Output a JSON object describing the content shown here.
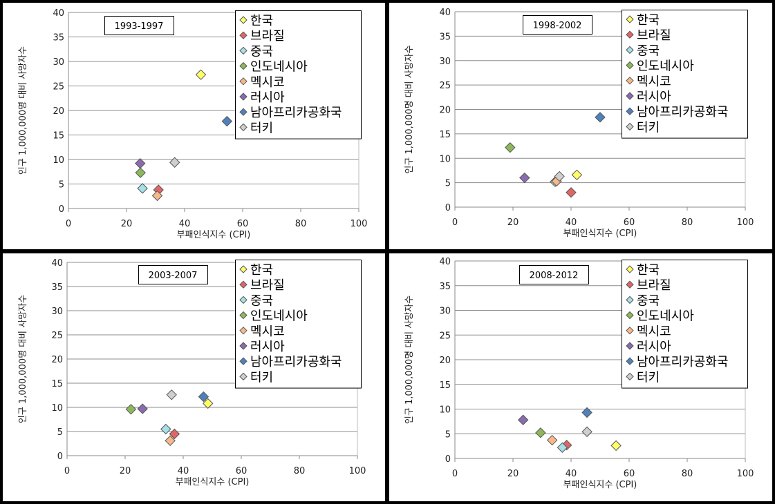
{
  "chart_data": [
    {
      "type": "scatter",
      "title": "1993-1997",
      "xlabel": "부패인식지수 (CPI)",
      "ylabel": "인구 1,000,000명 대비 사망자수",
      "xlim": [
        0,
        100
      ],
      "ylim": [
        0,
        40
      ],
      "xticks": [
        0,
        20,
        40,
        60,
        80,
        100
      ],
      "yticks": [
        0,
        5,
        10,
        15,
        20,
        25,
        30,
        35,
        40
      ],
      "grid": "horizontal",
      "legend": "top-right",
      "series": [
        {
          "name": "한국",
          "color": "#ffff66",
          "x": 45.6,
          "y": 27.3
        },
        {
          "name": "브라질",
          "color": "#e06666",
          "x": 31.0,
          "y": 3.8
        },
        {
          "name": "중국",
          "color": "#a6e0e8",
          "x": 25.5,
          "y": 4.1
        },
        {
          "name": "인도네시아",
          "color": "#8db85a",
          "x": 24.8,
          "y": 7.3
        },
        {
          "name": "멕시코",
          "color": "#f7b98a",
          "x": 30.6,
          "y": 2.6
        },
        {
          "name": "러시아",
          "color": "#8a6bb0",
          "x": 24.7,
          "y": 9.2
        },
        {
          "name": "남아프리카공화국",
          "color": "#4f81bd",
          "x": 54.6,
          "y": 17.8
        },
        {
          "name": "터키",
          "color": "#cfcfcf",
          "x": 36.6,
          "y": 9.4
        }
      ]
    },
    {
      "type": "scatter",
      "title": "1998-2002",
      "xlabel": "부패인식지수 (CPI)",
      "ylabel": "인구 1,000,000명 대비 사망자수",
      "xlim": [
        0,
        100
      ],
      "ylim": [
        0,
        40
      ],
      "xticks": [
        0,
        20,
        40,
        60,
        80,
        100
      ],
      "yticks": [
        0,
        5,
        10,
        15,
        20,
        25,
        30,
        35,
        40
      ],
      "grid": "horizontal",
      "legend": "top-right",
      "series": [
        {
          "name": "한국",
          "color": "#ffff66",
          "x": 42.0,
          "y": 6.6
        },
        {
          "name": "브라질",
          "color": "#e06666",
          "x": 40.0,
          "y": 3.0
        },
        {
          "name": "중국",
          "color": "#a6e0e8",
          "x": 34.5,
          "y": 5.2
        },
        {
          "name": "인도네시아",
          "color": "#8db85a",
          "x": 19.0,
          "y": 12.2
        },
        {
          "name": "멕시코",
          "color": "#f7b98a",
          "x": 35.0,
          "y": 5.3
        },
        {
          "name": "러시아",
          "color": "#8a6bb0",
          "x": 24.0,
          "y": 6.0
        },
        {
          "name": "남아프리카공화국",
          "color": "#4f81bd",
          "x": 50.0,
          "y": 18.4
        },
        {
          "name": "터키",
          "color": "#cfcfcf",
          "x": 36.0,
          "y": 6.3
        }
      ]
    },
    {
      "type": "scatter",
      "title": "2003-2007",
      "xlabel": "부패인식지수 (CPI)",
      "ylabel": "인구 1,000,000명 대비 사망자수",
      "xlim": [
        0,
        100
      ],
      "ylim": [
        0,
        40
      ],
      "xticks": [
        0,
        20,
        40,
        60,
        80,
        100
      ],
      "yticks": [
        0,
        5,
        10,
        15,
        20,
        25,
        30,
        35,
        40
      ],
      "grid": "horizontal",
      "legend": "top-right",
      "series": [
        {
          "name": "한국",
          "color": "#ffff66",
          "x": 48.5,
          "y": 10.8
        },
        {
          "name": "브라질",
          "color": "#e06666",
          "x": 37.0,
          "y": 4.5
        },
        {
          "name": "중국",
          "color": "#a6e0e8",
          "x": 34.0,
          "y": 5.5
        },
        {
          "name": "인도네시아",
          "color": "#8db85a",
          "x": 22.0,
          "y": 9.6
        },
        {
          "name": "멕시코",
          "color": "#f7b98a",
          "x": 35.5,
          "y": 3.1
        },
        {
          "name": "러시아",
          "color": "#8a6bb0",
          "x": 26.0,
          "y": 9.7
        },
        {
          "name": "남아프리카공화국",
          "color": "#4f81bd",
          "x": 47.0,
          "y": 12.2
        },
        {
          "name": "터키",
          "color": "#cfcfcf",
          "x": 36.0,
          "y": 12.6
        }
      ]
    },
    {
      "type": "scatter",
      "title": "2008-2012",
      "xlabel": "부패인식지수 (CPI)",
      "ylabel": "인구 1,000,000명 대비 사망자수",
      "xlim": [
        0,
        100
      ],
      "ylim": [
        0,
        40
      ],
      "xticks": [
        0,
        20,
        40,
        60,
        80,
        100
      ],
      "yticks": [
        0,
        5,
        10,
        15,
        20,
        25,
        30,
        35,
        40
      ],
      "grid": "horizontal",
      "legend": "top-right",
      "series": [
        {
          "name": "한국",
          "color": "#ffff66",
          "x": 55.5,
          "y": 2.6
        },
        {
          "name": "브라질",
          "color": "#e06666",
          "x": 38.5,
          "y": 2.7
        },
        {
          "name": "중국",
          "color": "#a6e0e8",
          "x": 37.0,
          "y": 2.2
        },
        {
          "name": "인도네시아",
          "color": "#8db85a",
          "x": 29.5,
          "y": 5.2
        },
        {
          "name": "멕시코",
          "color": "#f7b98a",
          "x": 33.5,
          "y": 3.7
        },
        {
          "name": "러시아",
          "color": "#8a6bb0",
          "x": 23.5,
          "y": 7.8
        },
        {
          "name": "남아프리카공화국",
          "color": "#4f81bd",
          "x": 45.5,
          "y": 9.3
        },
        {
          "name": "터키",
          "color": "#cfcfcf",
          "x": 45.5,
          "y": 5.4
        }
      ]
    }
  ]
}
